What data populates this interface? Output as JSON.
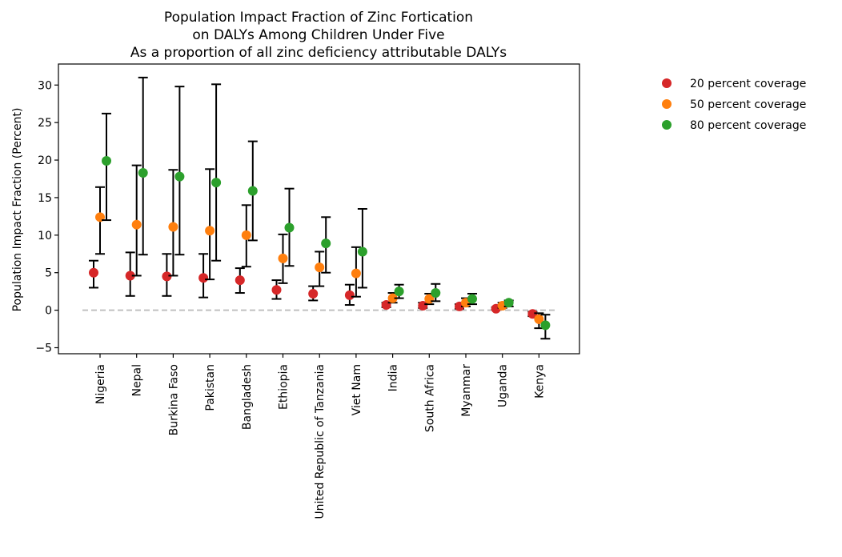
{
  "chart_data": {
    "type": "scatter",
    "title_lines": [
      "Population Impact Fraction of Zinc Fortication",
      "on DALYs Among Children Under Five",
      "As a proportion of all zinc deficiency attributable DALYs"
    ],
    "xlabel": "",
    "ylabel": "Population Impact Fraction (Percent)",
    "ylim": [
      -5.8,
      32.8
    ],
    "yticks": [
      -5,
      0,
      5,
      10,
      15,
      20,
      25,
      30
    ],
    "grid": false,
    "legend_position": "outside-top-right",
    "reference_line": {
      "y": 0,
      "style": "dashed",
      "color": "#c0c0c0"
    },
    "categories": [
      "Nigeria",
      "Nepal",
      "Burkina Faso",
      "Pakistan",
      "Bangladesh",
      "Ethiopia",
      "United Republic of Tanzania",
      "Viet Nam",
      "India",
      "South Africa",
      "Myanmar",
      "Uganda",
      "Kenya"
    ],
    "series": [
      {
        "name": "20 percent coverage",
        "color": "#d62728",
        "values": [
          5.0,
          4.6,
          4.5,
          4.3,
          4.0,
          2.7,
          2.2,
          2.0,
          0.7,
          0.6,
          0.5,
          0.2,
          -0.5
        ],
        "lower": [
          3.0,
          1.9,
          1.9,
          1.7,
          2.3,
          1.5,
          1.3,
          0.7,
          0.4,
          0.3,
          0.2,
          0.1,
          -0.8
        ],
        "upper": [
          6.6,
          7.7,
          7.5,
          7.5,
          5.6,
          4.0,
          3.2,
          3.4,
          1.0,
          1.0,
          0.8,
          0.4,
          -0.2
        ]
      },
      {
        "name": "50 percent coverage",
        "color": "#ff7f0e",
        "values": [
          12.4,
          11.4,
          11.1,
          10.6,
          10.0,
          6.9,
          5.7,
          4.9,
          1.6,
          1.5,
          1.0,
          0.6,
          -1.2
        ],
        "lower": [
          7.5,
          4.6,
          4.6,
          4.1,
          5.8,
          3.6,
          3.2,
          1.8,
          1.0,
          0.8,
          0.5,
          0.3,
          -2.4
        ],
        "upper": [
          16.4,
          19.3,
          18.7,
          18.8,
          14.0,
          10.1,
          7.8,
          8.4,
          2.3,
          2.2,
          1.6,
          1.0,
          -0.4
        ]
      },
      {
        "name": "80 percent coverage",
        "color": "#2ca02c",
        "values": [
          19.9,
          18.3,
          17.8,
          17.0,
          15.9,
          11.0,
          8.9,
          7.8,
          2.5,
          2.3,
          1.5,
          1.0,
          -2.0
        ],
        "lower": [
          12.0,
          7.4,
          7.4,
          6.6,
          9.3,
          5.9,
          5.0,
          3.0,
          1.6,
          1.2,
          0.8,
          0.5,
          -3.8
        ],
        "upper": [
          26.2,
          31.0,
          29.8,
          30.1,
          22.5,
          16.2,
          12.4,
          13.5,
          3.4,
          3.5,
          2.2,
          1.3,
          -0.6
        ]
      }
    ]
  }
}
